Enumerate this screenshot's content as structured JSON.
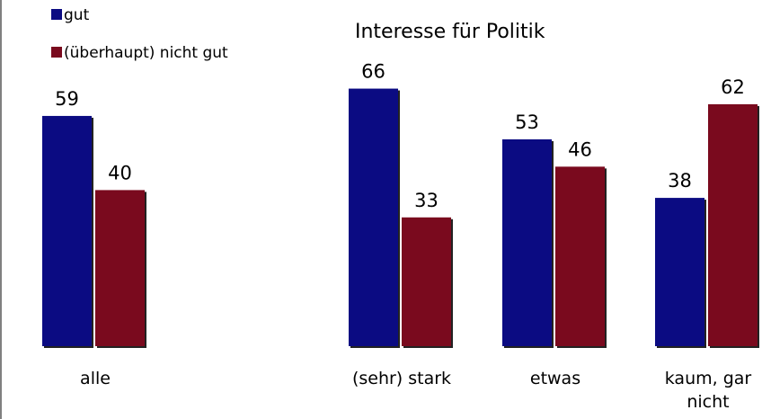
{
  "chart_data": {
    "type": "bar",
    "annotation": "Interesse für Politik",
    "categories": [
      "alle",
      "(sehr) stark",
      "etwas",
      "kaum, gar nicht"
    ],
    "series": [
      {
        "name": "gut",
        "color": "#0b0b82",
        "values": [
          59,
          66,
          53,
          38
        ]
      },
      {
        "name": "(überhaupt) nicht gut",
        "color": "#7a0a1e",
        "values": [
          40,
          33,
          46,
          62
        ]
      }
    ]
  }
}
